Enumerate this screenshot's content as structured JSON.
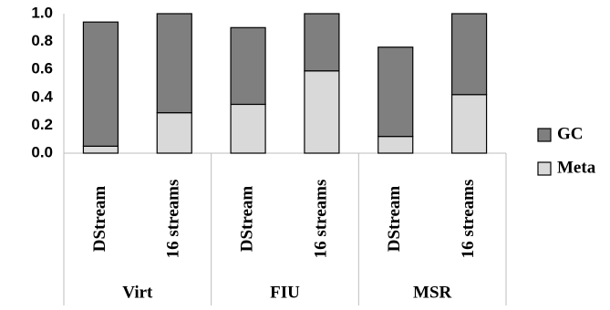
{
  "chart_data": {
    "type": "stacked-bar",
    "categories": [
      "DStream",
      "16 streams",
      "DStream",
      "16 streams",
      "DStream",
      "16 streams"
    ],
    "groups": [
      "Virt",
      "FIU",
      "MSR"
    ],
    "series": [
      {
        "name": "GC",
        "color": "#7f7f7f",
        "values": [
          0.89,
          0.71,
          0.55,
          0.41,
          0.64,
          0.58
        ]
      },
      {
        "name": "Meta",
        "color": "#d9d9d9",
        "values": [
          0.05,
          0.29,
          0.35,
          0.59,
          0.12,
          0.42
        ]
      }
    ],
    "ylim": [
      0,
      1
    ],
    "yticks": [
      {
        "value": 0,
        "label": "0.0"
      },
      0.2,
      0.4,
      0.6,
      0.8,
      {
        "value": 1,
        "label": "1.0"
      }
    ],
    "grid": false,
    "legend": "right"
  }
}
